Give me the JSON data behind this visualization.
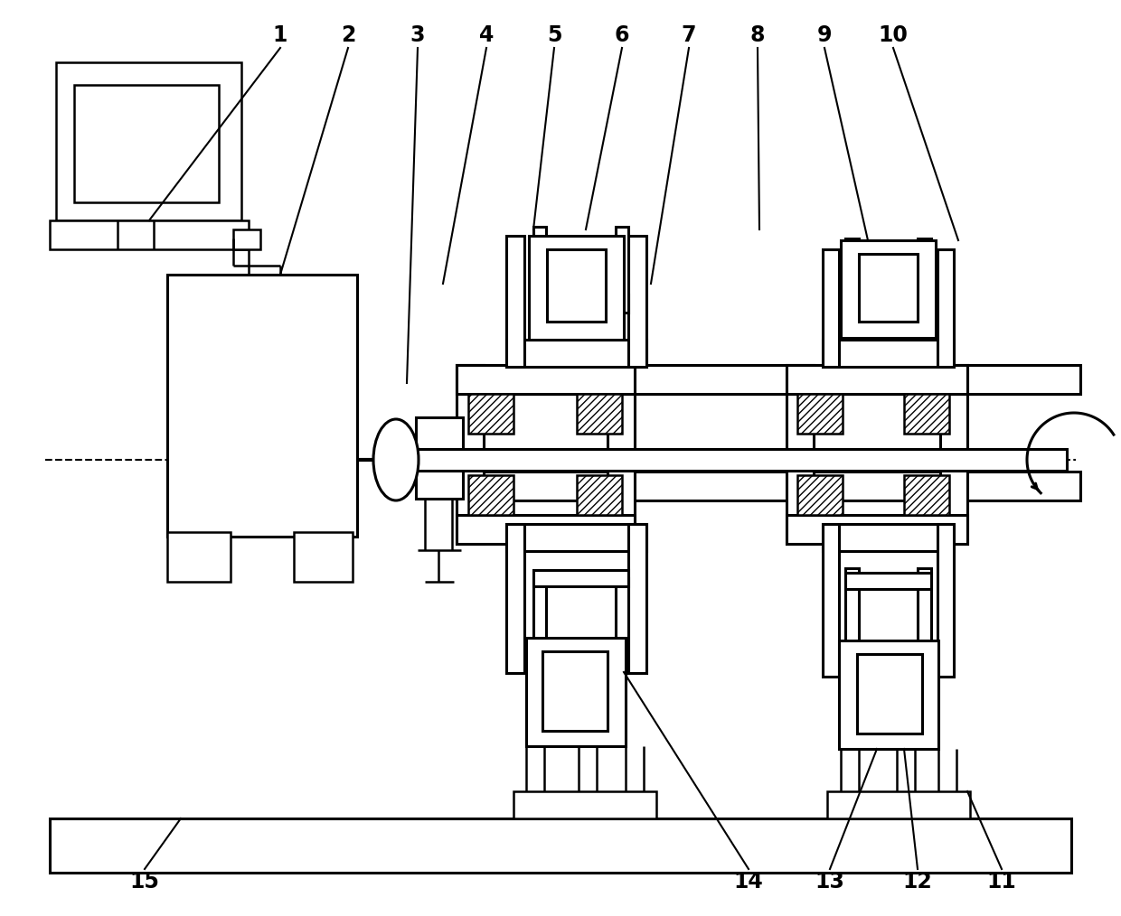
{
  "bg_color": "#ffffff",
  "lw": 2.2,
  "lw_thin": 1.8,
  "lw_label": 1.5,
  "font_size": 17,
  "fig_w": 12.4,
  "fig_h": 10.14,
  "dpi": 100
}
